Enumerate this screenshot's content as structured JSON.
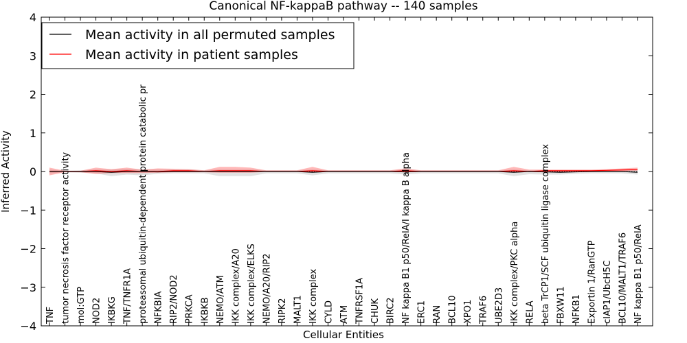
{
  "chart_data": {
    "type": "line",
    "title": "Canonical NF-kappaB pathway -- 140 samples",
    "xlabel": "Cellular Entities",
    "ylabel": "Inferred Activity",
    "ylim": [
      -4,
      4
    ],
    "yticks": [
      "−4",
      "−3",
      "−2",
      "−1",
      "0",
      "1",
      "2",
      "3",
      "4"
    ],
    "grid": false,
    "legend_position": "top-left",
    "legend": {
      "items": [
        {
          "label": "Mean activity in all permuted samples",
          "color": "#000000"
        },
        {
          "label": "Mean activity in patient samples",
          "color": "#ff0000"
        }
      ]
    },
    "categories": [
      "TNF",
      "tumor necrosis factor receptor activity",
      "mol:GTP",
      "NOD2",
      "IKBKG",
      "TNF/TNFR1A",
      "proteasomal ubiquitin-dependent protein catabolic pr",
      "NFKBIA",
      "RIP2/NOD2",
      "PRKCA",
      "IKBKB",
      "NEMO/ATM",
      "IKK complex/A20",
      "IKK complex/ELKS",
      "NEMO/A20/RIP2",
      "RIPK2",
      "MALT1",
      "IKK complex",
      "CYLD",
      "ATM",
      "TNFRSF1A",
      "CHUK",
      "BIRC2",
      "NF kappa B1 p50/RelA/I kappa B alpha",
      "ERC1",
      "RAN",
      "BCL10",
      "XPO1",
      "TRAF6",
      "UBE2D3",
      "IKK complex/PKC alpha",
      "RELA",
      "beta TrCP1/SCF ubiquitin ligase complex",
      "FBXW11",
      "NFKB1",
      "Exportin 1/RanGTP",
      "cIAP1/UbcH5C",
      "BCL10/MALT1/TRAF6",
      "NF kappa B1 p50/RelA"
    ],
    "series": [
      {
        "name": "Mean activity in all permuted samples",
        "color": "#000000",
        "values": [
          0,
          0,
          0,
          0,
          -0.02,
          0,
          0,
          -0.01,
          0,
          0,
          0,
          0,
          0,
          0,
          0,
          0,
          0,
          -0.02,
          0,
          0,
          0,
          0,
          0,
          -0.01,
          0,
          0,
          0,
          0,
          0,
          0,
          -0.02,
          0,
          -0.01,
          -0.02,
          -0.01,
          0,
          0,
          0,
          -0.02
        ],
        "band_low": [
          -0.05,
          -0.02,
          -0.03,
          -0.05,
          -0.12,
          -0.08,
          -0.1,
          -0.06,
          -0.05,
          -0.05,
          -0.05,
          -0.12,
          -0.12,
          -0.12,
          -0.05,
          -0.05,
          -0.05,
          -0.1,
          -0.05,
          -0.05,
          -0.05,
          -0.05,
          -0.05,
          -0.08,
          -0.05,
          -0.05,
          -0.05,
          -0.05,
          -0.05,
          -0.05,
          -0.12,
          -0.07,
          -0.08,
          -0.08,
          -0.06,
          -0.05,
          -0.05,
          -0.05,
          -0.08
        ],
        "band_high": [
          0.05,
          0.02,
          0.03,
          0.05,
          0.05,
          0.06,
          0.05,
          0.05,
          0.05,
          0.05,
          0.03,
          0.05,
          0.05,
          0.05,
          0.03,
          0.03,
          0.03,
          0.05,
          0.03,
          0.03,
          0.03,
          0.03,
          0.03,
          0.05,
          0.03,
          0.03,
          0.03,
          0.03,
          0.03,
          0.03,
          0.05,
          0.03,
          0.03,
          0.03,
          0.03,
          0.03,
          0.03,
          0.04,
          0.05
        ]
      },
      {
        "name": "Mean activity in patient samples",
        "color": "#ff0000",
        "values": [
          0,
          0,
          0,
          0.02,
          0,
          0.02,
          0,
          0,
          0.02,
          0.02,
          0,
          0.02,
          0.02,
          0.02,
          0,
          0,
          0,
          0.02,
          0,
          0,
          0,
          0,
          0,
          0.02,
          0,
          0,
          0,
          0,
          0,
          0,
          0.02,
          0,
          0.02,
          0.02,
          0.02,
          0.02,
          0.03,
          0.04,
          0.05
        ],
        "band_low": [
          -0.1,
          -0.02,
          -0.02,
          -0.06,
          -0.04,
          -0.04,
          -0.04,
          -0.03,
          -0.02,
          -0.02,
          -0.02,
          -0.03,
          -0.03,
          -0.03,
          -0.01,
          -0.01,
          -0.01,
          -0.02,
          -0.01,
          -0.01,
          -0.01,
          -0.01,
          -0.01,
          -0.02,
          -0.01,
          -0.01,
          -0.01,
          -0.01,
          -0.01,
          -0.01,
          -0.02,
          -0.01,
          -0.01,
          -0.01,
          -0.01,
          0,
          0,
          0.01,
          0.02
        ],
        "band_high": [
          0.1,
          0.02,
          0.02,
          0.1,
          0.06,
          0.1,
          0.05,
          0.08,
          0.07,
          0.06,
          0.03,
          0.12,
          0.12,
          0.1,
          0.03,
          0.03,
          0.03,
          0.12,
          0.03,
          0.03,
          0.03,
          0.03,
          0.03,
          0.08,
          0.03,
          0.03,
          0.03,
          0.03,
          0.03,
          0.03,
          0.12,
          0.05,
          0.05,
          0.05,
          0.05,
          0.05,
          0.06,
          0.08,
          0.1
        ]
      }
    ]
  }
}
